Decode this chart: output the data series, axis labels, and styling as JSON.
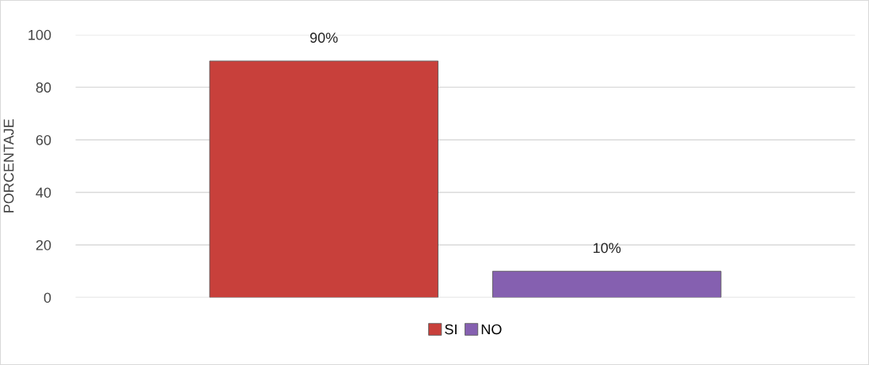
{
  "chart_data": {
    "type": "bar",
    "ylabel": "PORCENTAJE",
    "categories": [
      null
    ],
    "series": [
      {
        "name": "SI",
        "color": "#c8403b",
        "values": [
          90
        ],
        "value_labels": [
          "90%"
        ]
      },
      {
        "name": "NO",
        "color": "#8560b0",
        "values": [
          10
        ],
        "value_labels": [
          "10%"
        ]
      }
    ],
    "ylim": [
      0,
      100
    ],
    "yticks": [
      0,
      20,
      40,
      60,
      80,
      100
    ],
    "grid": "y",
    "legend": "bottom"
  }
}
